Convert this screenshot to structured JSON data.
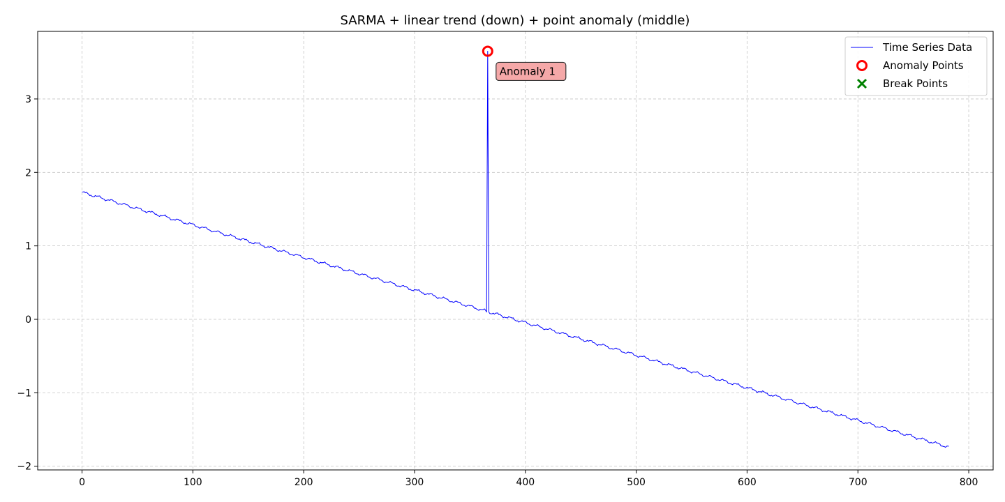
{
  "chart_data": {
    "type": "line",
    "title": "SARMA + linear trend (down) + point anomaly (middle)",
    "xlabel": "",
    "ylabel": "",
    "xlim": [
      -40,
      822
    ],
    "ylim": [
      -2.05,
      3.92
    ],
    "x_ticks": [
      0,
      100,
      200,
      300,
      400,
      500,
      600,
      700,
      800
    ],
    "y_ticks": [
      -2,
      -1,
      0,
      1,
      2,
      3
    ],
    "grid": true,
    "legend_position": "top-right",
    "series": [
      {
        "name": "Time Series Data",
        "kind": "line",
        "color": "#0000ff",
        "start": {
          "x": 0,
          "y": 1.73
        },
        "end": {
          "x": 782,
          "y": -1.74
        },
        "seasonal_period": 12,
        "seasonal_amplitude": 0.015,
        "spikes": [
          {
            "x": 366,
            "y": 3.65,
            "baseline_before": 0.1,
            "baseline_after": 0.1
          }
        ]
      },
      {
        "name": "Anomaly Points",
        "kind": "marker-circle",
        "color": "#ff0000",
        "points": [
          {
            "x": 366,
            "y": 3.65
          }
        ]
      },
      {
        "name": "Break Points",
        "kind": "marker-x",
        "color": "#008000",
        "points": []
      }
    ],
    "annotations": [
      {
        "text": "Anomaly 1",
        "x": 366,
        "y": 3.65,
        "box_color": "#f4a3a3",
        "placement": "right-below"
      }
    ]
  }
}
